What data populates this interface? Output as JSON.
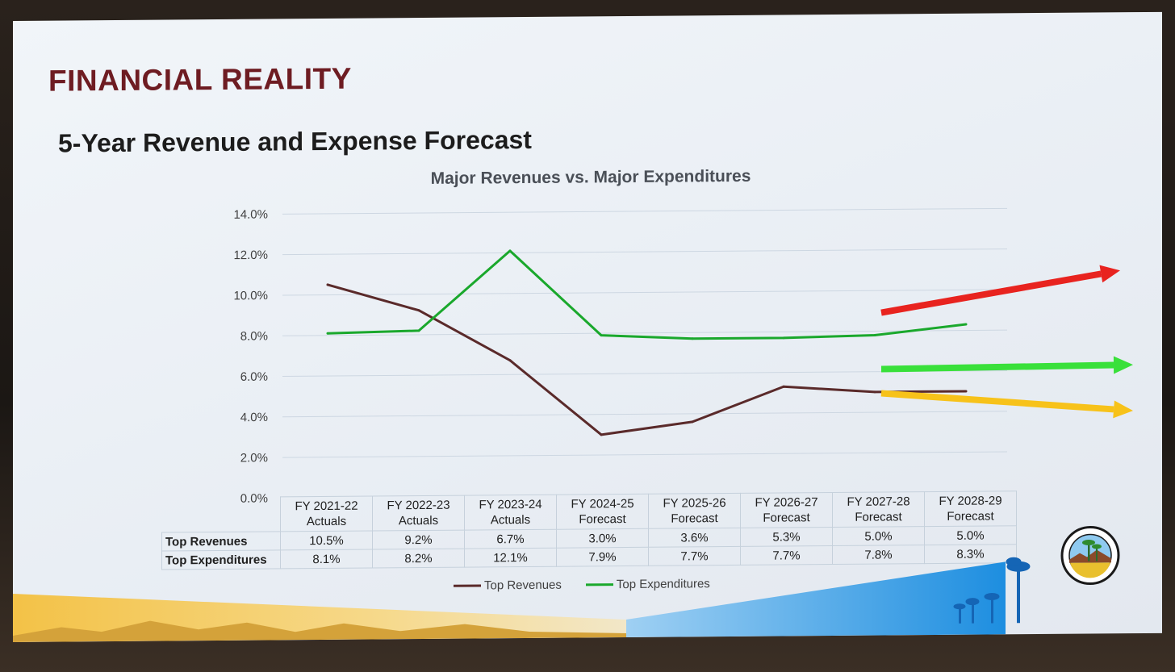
{
  "slide": {
    "heading": "FINANCIAL REALITY",
    "subheading": "5-Year Revenue and Expense Forecast"
  },
  "chart_data": {
    "type": "line",
    "title": "Major Revenues vs. Major Expenditures",
    "categories": [
      [
        "FY 2021-22",
        "Actuals"
      ],
      [
        "FY 2022-23",
        "Actuals"
      ],
      [
        "FY 2023-24",
        "Actuals"
      ],
      [
        "FY 2024-25",
        "Forecast"
      ],
      [
        "FY 2025-26",
        "Forecast"
      ],
      [
        "FY 2026-27",
        "Forecast"
      ],
      [
        "FY 2027-28",
        "Forecast"
      ],
      [
        "FY 2028-29",
        "Forecast"
      ]
    ],
    "series": [
      {
        "name": "Top Revenues",
        "color": "#5a2a2a",
        "values": [
          10.5,
          9.2,
          6.7,
          3.0,
          3.6,
          5.3,
          5.0,
          5.0
        ],
        "labels": [
          "10.5%",
          "9.2%",
          "6.7%",
          "3.0%",
          "3.6%",
          "5.3%",
          "5.0%",
          "5.0%"
        ]
      },
      {
        "name": "Top Expenditures",
        "color": "#1aa82c",
        "values": [
          8.1,
          8.2,
          12.1,
          7.9,
          7.7,
          7.7,
          7.8,
          8.3
        ],
        "labels": [
          "8.1%",
          "8.2%",
          "12.1%",
          "7.9%",
          "7.7%",
          "7.7%",
          "7.8%",
          "8.3%"
        ]
      }
    ],
    "y_ticks": [
      "0.0%",
      "2.0%",
      "4.0%",
      "6.0%",
      "8.0%",
      "10.0%",
      "12.0%",
      "14.0%"
    ],
    "ylim": [
      0,
      14
    ],
    "grid": true,
    "legend": "bottom",
    "data_table": true
  },
  "trend_arrows": [
    {
      "name": "red-trend-arrow",
      "color": "#e8231f",
      "direction": "up"
    },
    {
      "name": "green-trend-arrow",
      "color": "#39e03a",
      "direction": "flat"
    },
    {
      "name": "yellow-trend-arrow",
      "color": "#f7c21a",
      "direction": "down"
    }
  ]
}
